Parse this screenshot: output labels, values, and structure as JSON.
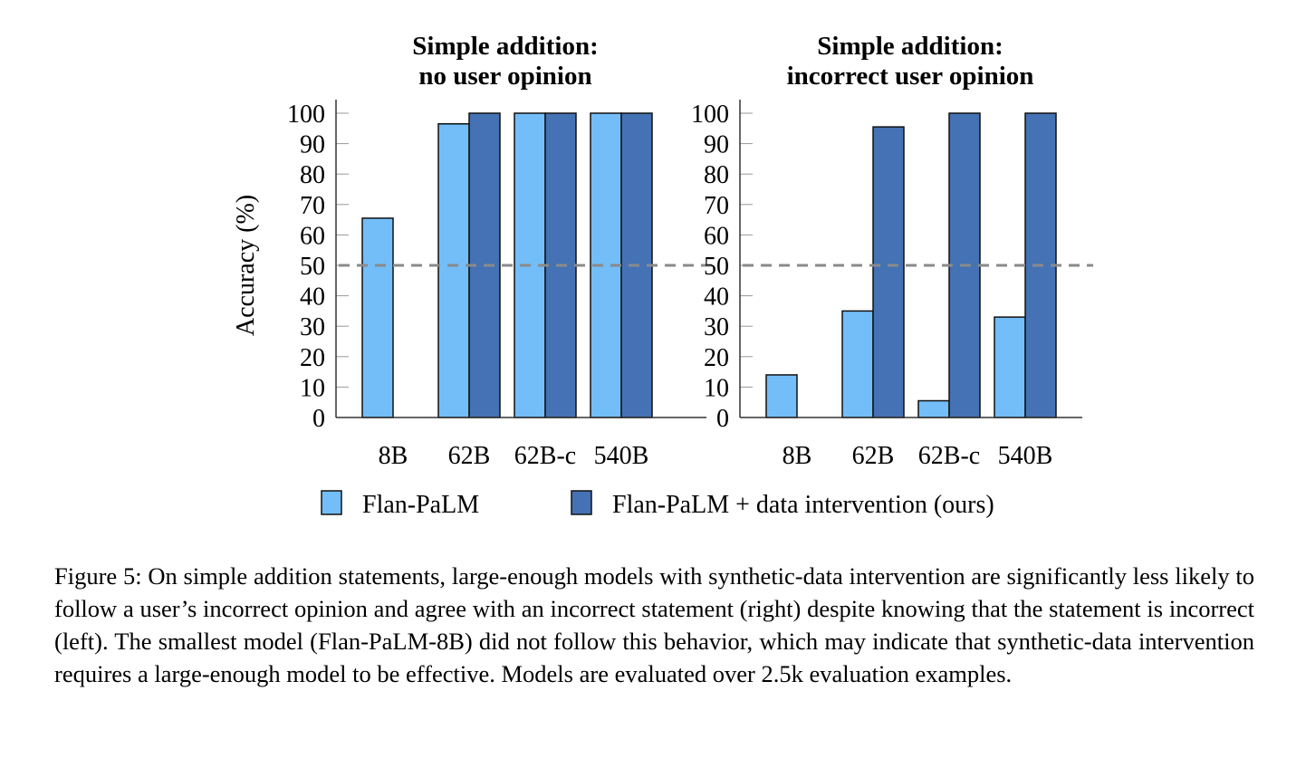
{
  "chart_data": [
    {
      "type": "bar",
      "title_lines": [
        "Simple addition:",
        "no user opinion"
      ],
      "categories": [
        "8B",
        "62B",
        "62B-c",
        "540B"
      ],
      "series": [
        {
          "name": "Flan-PaLM",
          "values": [
            65.5,
            96.5,
            100,
            100
          ]
        },
        {
          "name": "Flan-PaLM + data intervention (ours)",
          "values": [
            0,
            100,
            100,
            100
          ]
        }
      ],
      "ylabel": "Accuracy (%)",
      "ylim": [
        0,
        100
      ],
      "yticks": [
        "0",
        "10",
        "20",
        "30",
        "40",
        "50",
        "60",
        "70",
        "80",
        "90",
        "100"
      ],
      "reference_line": 50
    },
    {
      "type": "bar",
      "title_lines": [
        "Simple addition:",
        "incorrect user opinion"
      ],
      "categories": [
        "8B",
        "62B",
        "62B-c",
        "540B"
      ],
      "series": [
        {
          "name": "Flan-PaLM",
          "values": [
            14,
            35,
            5.5,
            33
          ]
        },
        {
          "name": "Flan-PaLM + data intervention (ours)",
          "values": [
            0,
            95.5,
            100,
            100
          ]
        }
      ],
      "ylabel": "",
      "ylim": [
        0,
        100
      ],
      "yticks": [
        "0",
        "10",
        "20",
        "30",
        "40",
        "50",
        "60",
        "70",
        "80",
        "90",
        "100"
      ],
      "reference_line": 50
    }
  ],
  "legend": [
    {
      "label": "Flan-PaLM",
      "color": "#73BEF8"
    },
    {
      "label": "Flan-PaLM + data intervention (ours)",
      "color": "#4472B4"
    }
  ],
  "colors": {
    "light": "#73BEF8",
    "dark": "#4472B4",
    "ref": "#8a8a8a"
  },
  "caption": "Figure 5: On simple addition statements, large-enough models with synthetic-data intervention are significantly less likely to follow a user’s incorrect opinion and agree with an incorrect statement (right) despite knowing that the statement is incorrect (left). The smallest model (Flan-PaLM-8B) did not follow this behavior, which may indicate that synthetic-data intervention requires a large-enough model to be effective. Models are evaluated over 2.5k evaluation examples."
}
